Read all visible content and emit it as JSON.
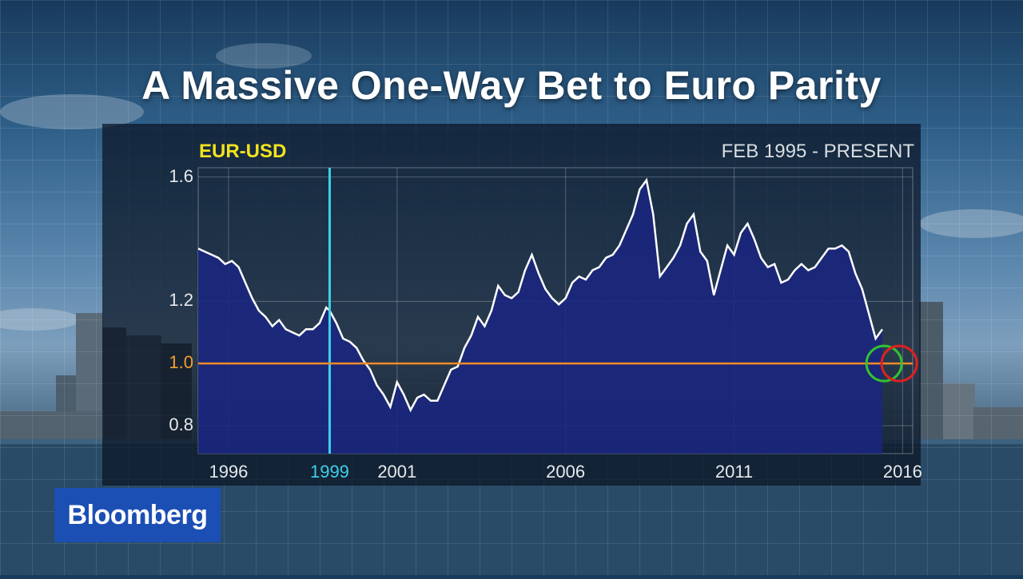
{
  "headline": "A Massive One-Way Bet to Euro Parity",
  "branding": {
    "logo_text": "Bloomberg",
    "color": "#1c4fb4"
  },
  "chart_data": {
    "type": "area",
    "series_label": "EUR-USD",
    "range_label": "FEB 1995 - PRESENT",
    "x_ticks": [
      "1996",
      "1999",
      "2001",
      "2006",
      "2011",
      "2016"
    ],
    "y_ticks": [
      "1.6",
      "1.2",
      "1.0",
      "0.8"
    ],
    "ylim": [
      0.71,
      1.63
    ],
    "xlim": [
      1995.1,
      2016.3
    ],
    "grid": true,
    "fill_color": "#1a2680",
    "line_color": "#ffffff",
    "reference_line": {
      "value": 1.0,
      "color": "#f08a2a",
      "label": "1.0"
    },
    "event_line": {
      "year": 1999.0,
      "label": "1999",
      "color": "#3fd0ea"
    },
    "markers": [
      {
        "type": "circle",
        "color": "#33c233",
        "x": 2015.45,
        "y": 1.0
      },
      {
        "type": "circle",
        "color": "#e02020",
        "x": 2015.9,
        "y": 1.0
      }
    ],
    "series": [
      {
        "name": "EUR-USD",
        "x": [
          1995.1,
          1995.3,
          1995.5,
          1995.7,
          1995.9,
          1996.1,
          1996.3,
          1996.5,
          1996.7,
          1996.9,
          1997.1,
          1997.3,
          1997.5,
          1997.7,
          1997.9,
          1998.1,
          1998.3,
          1998.5,
          1998.7,
          1998.9,
          1999.0,
          1999.2,
          1999.4,
          1999.6,
          1999.8,
          2000.0,
          2000.2,
          2000.4,
          2000.6,
          2000.8,
          2001.0,
          2001.2,
          2001.4,
          2001.6,
          2001.8,
          2002.0,
          2002.2,
          2002.4,
          2002.6,
          2002.8,
          2003.0,
          2003.2,
          2003.4,
          2003.6,
          2003.8,
          2004.0,
          2004.2,
          2004.4,
          2004.6,
          2004.8,
          2005.0,
          2005.2,
          2005.4,
          2005.6,
          2005.8,
          2006.0,
          2006.2,
          2006.4,
          2006.6,
          2006.8,
          2007.0,
          2007.2,
          2007.4,
          2007.6,
          2007.8,
          2008.0,
          2008.2,
          2008.4,
          2008.6,
          2008.8,
          2009.0,
          2009.2,
          2009.4,
          2009.6,
          2009.8,
          2010.0,
          2010.2,
          2010.4,
          2010.6,
          2010.8,
          2011.0,
          2011.2,
          2011.4,
          2011.6,
          2011.8,
          2012.0,
          2012.2,
          2012.4,
          2012.6,
          2012.8,
          2013.0,
          2013.2,
          2013.4,
          2013.6,
          2013.8,
          2014.0,
          2014.2,
          2014.4,
          2014.6,
          2014.8,
          2015.0,
          2015.2,
          2015.4
        ],
        "values": [
          1.37,
          1.36,
          1.35,
          1.34,
          1.32,
          1.33,
          1.31,
          1.26,
          1.21,
          1.17,
          1.15,
          1.12,
          1.14,
          1.11,
          1.1,
          1.09,
          1.11,
          1.11,
          1.13,
          1.18,
          1.17,
          1.13,
          1.08,
          1.07,
          1.05,
          1.01,
          0.98,
          0.93,
          0.9,
          0.86,
          0.94,
          0.9,
          0.85,
          0.89,
          0.9,
          0.88,
          0.88,
          0.93,
          0.98,
          0.99,
          1.05,
          1.09,
          1.15,
          1.12,
          1.17,
          1.25,
          1.22,
          1.21,
          1.23,
          1.3,
          1.35,
          1.29,
          1.24,
          1.21,
          1.19,
          1.21,
          1.26,
          1.28,
          1.27,
          1.3,
          1.31,
          1.34,
          1.35,
          1.38,
          1.43,
          1.48,
          1.56,
          1.59,
          1.48,
          1.28,
          1.31,
          1.34,
          1.38,
          1.45,
          1.48,
          1.36,
          1.33,
          1.22,
          1.3,
          1.38,
          1.35,
          1.42,
          1.45,
          1.4,
          1.34,
          1.31,
          1.32,
          1.26,
          1.27,
          1.3,
          1.32,
          1.3,
          1.31,
          1.34,
          1.37,
          1.37,
          1.38,
          1.36,
          1.29,
          1.24,
          1.16,
          1.08,
          1.11
        ]
      }
    ]
  }
}
